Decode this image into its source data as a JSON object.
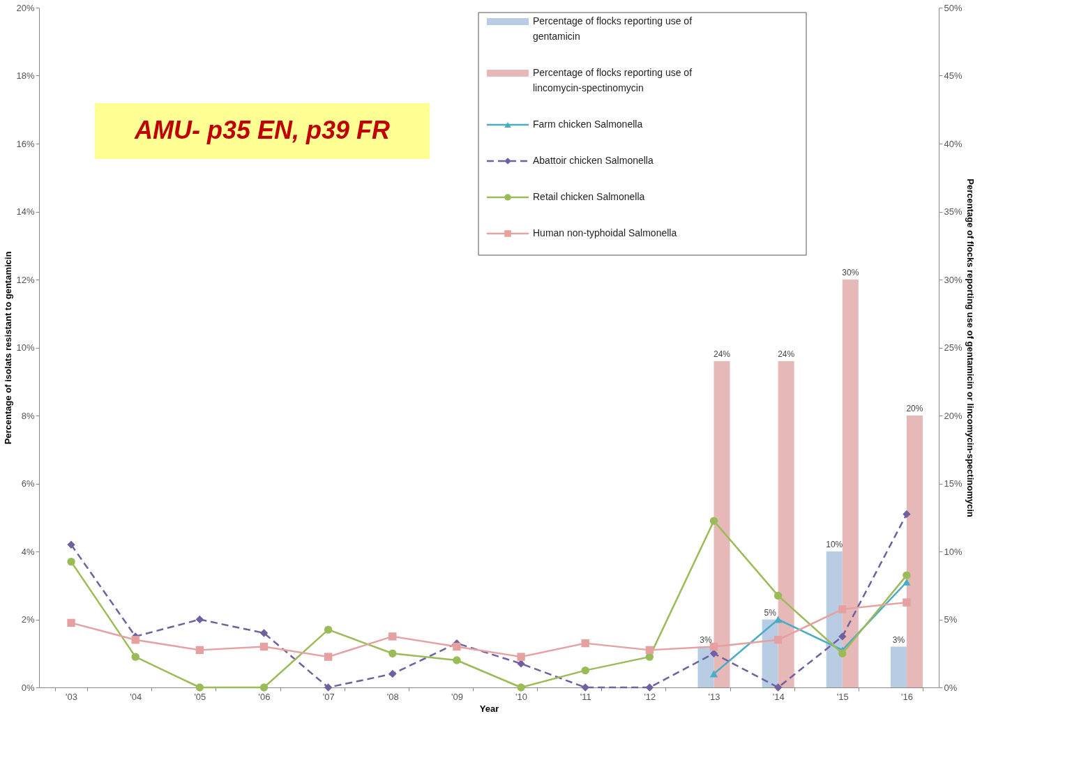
{
  "chart_data": {
    "type": "line",
    "categories": [
      "'03",
      "'04",
      "'05",
      "'06",
      "'07",
      "'08",
      "'09",
      "'10",
      "'11",
      "'12",
      "'13",
      "'14",
      "'15",
      "'16"
    ],
    "xlabel": "Year",
    "ylabel": "Percentage of isolats resistant to gentamicin",
    "y2label": "Percentage of flocks reporting use of gentamicin or lincomycin-spectinomycin",
    "ylim": [
      0,
      20
    ],
    "yticks": [
      {
        "value": 0,
        "label": "0%"
      },
      {
        "value": 2,
        "label": "2%"
      },
      {
        "value": 4,
        "label": "4%"
      },
      {
        "value": 6,
        "label": "6%"
      },
      {
        "value": 8,
        "label": "8%"
      },
      {
        "value": 10,
        "label": "10%"
      },
      {
        "value": 12,
        "label": "12%"
      },
      {
        "value": 14,
        "label": "14%"
      },
      {
        "value": 16,
        "label": "16%"
      },
      {
        "value": 18,
        "label": "18%"
      },
      {
        "value": 20,
        "label": "20%"
      }
    ],
    "y2lim": [
      0,
      50
    ],
    "y2ticks": [
      {
        "value": 0,
        "label": "0%"
      },
      {
        "value": 5,
        "label": "5%"
      },
      {
        "value": 10,
        "label": "10%"
      },
      {
        "value": 15,
        "label": "15%"
      },
      {
        "value": 20,
        "label": "20%"
      },
      {
        "value": 25,
        "label": "25%"
      },
      {
        "value": 30,
        "label": "30%"
      },
      {
        "value": 35,
        "label": "35%"
      },
      {
        "value": 40,
        "label": "40%"
      },
      {
        "value": 45,
        "label": "45%"
      },
      {
        "value": 50,
        "label": "50%"
      }
    ],
    "legend": "top right",
    "grid": false,
    "annotations": [
      "AMU- p35 EN, p39 FR"
    ],
    "series": [
      {
        "name": "Percentage of flocks reporting use of gentamicin",
        "type": "bar",
        "axis": "y2",
        "color": "#b8cce4",
        "values": [
          null,
          null,
          null,
          null,
          null,
          null,
          null,
          null,
          null,
          null,
          3,
          5,
          10,
          3
        ],
        "value_labels": [
          null,
          null,
          null,
          null,
          null,
          null,
          null,
          null,
          null,
          null,
          "3%",
          "5%",
          "10%",
          "3%"
        ]
      },
      {
        "name": "Percentage of flocks reporting use of lincomycin-spectinomycin",
        "type": "bar",
        "axis": "y2",
        "color": "#e6b9b8",
        "values": [
          null,
          null,
          null,
          null,
          null,
          null,
          null,
          null,
          null,
          null,
          24,
          24,
          30,
          20
        ],
        "value_labels": [
          null,
          null,
          null,
          null,
          null,
          null,
          null,
          null,
          null,
          null,
          "24%",
          "24%",
          "30%",
          "20%"
        ]
      },
      {
        "name": "Farm chicken Salmonella",
        "color": "#4bacc6",
        "marker": "triangle",
        "line_style": "solid",
        "values": [
          null,
          null,
          null,
          null,
          null,
          null,
          null,
          null,
          null,
          null,
          0.4,
          2.0,
          1.1,
          3.1
        ]
      },
      {
        "name": "Abattoir chicken Salmonella",
        "color": "#7060a0",
        "marker": "diamond",
        "line_style": "dashed",
        "values": [
          4.2,
          1.5,
          2.0,
          1.6,
          0,
          0.4,
          1.3,
          0.7,
          0,
          0,
          1.0,
          0,
          1.5,
          5.1
        ]
      },
      {
        "name": "Retail chicken Salmonella",
        "color": "#9bbb59",
        "marker": "circle",
        "line_style": "solid",
        "values": [
          3.7,
          0.9,
          0,
          0,
          1.7,
          1.0,
          0.8,
          0,
          0.5,
          0.9,
          4.9,
          2.7,
          1.0,
          3.3
        ]
      },
      {
        "name": "Human non-typhoidal Salmonella",
        "color": "#e6a0a0",
        "marker": "square",
        "line_style": "solid",
        "values": [
          1.9,
          1.4,
          1.1,
          1.2,
          0.9,
          1.5,
          1.2,
          0.9,
          1.3,
          1.1,
          1.2,
          1.4,
          2.3,
          2.5
        ]
      }
    ]
  }
}
